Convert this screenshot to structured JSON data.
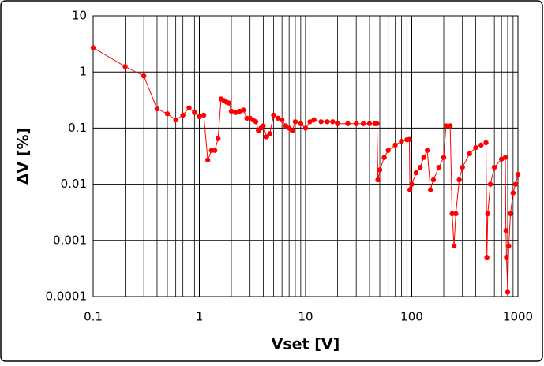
{
  "chart_data": {
    "type": "line",
    "xlabel": "Vset [V]",
    "ylabel": "ΔV [%]",
    "x": [
      0.1,
      0.2,
      0.3,
      0.4,
      0.5,
      0.6,
      0.7,
      0.8,
      0.9,
      1.0,
      1.1,
      1.2,
      1.3,
      1.4,
      1.5,
      1.6,
      1.7,
      1.8,
      1.9,
      2,
      2.2,
      2.4,
      2.6,
      2.8,
      3,
      3.2,
      3.4,
      3.6,
      3.8,
      4,
      4.3,
      4.6,
      5,
      5.5,
      6,
      6.5,
      7,
      7.5,
      8,
      9,
      10,
      11,
      12,
      14,
      16,
      18,
      20,
      25,
      30,
      35,
      40,
      45,
      47,
      48,
      50,
      55,
      60,
      70,
      80,
      90,
      95,
      96,
      100,
      110,
      120,
      130,
      140,
      150,
      160,
      180,
      200,
      210,
      230,
      240,
      250,
      260,
      280,
      300,
      350,
      400,
      450,
      500,
      510,
      520,
      550,
      600,
      700,
      760,
      770,
      780,
      800,
      820,
      850,
      900,
      950,
      1000
    ],
    "values": [
      2.7,
      1.25,
      0.85,
      0.22,
      0.18,
      0.14,
      0.17,
      0.23,
      0.19,
      0.16,
      0.17,
      0.027,
      0.04,
      0.04,
      0.065,
      0.33,
      0.31,
      0.29,
      0.28,
      0.2,
      0.19,
      0.2,
      0.21,
      0.15,
      0.15,
      0.14,
      0.13,
      0.09,
      0.1,
      0.11,
      0.07,
      0.08,
      0.17,
      0.15,
      0.14,
      0.11,
      0.1,
      0.09,
      0.13,
      0.12,
      0.1,
      0.13,
      0.14,
      0.13,
      0.13,
      0.13,
      0.12,
      0.12,
      0.12,
      0.12,
      0.12,
      0.12,
      0.12,
      0.012,
      0.018,
      0.03,
      0.04,
      0.05,
      0.058,
      0.062,
      0.063,
      0.008,
      0.01,
      0.016,
      0.02,
      0.03,
      0.04,
      0.008,
      0.012,
      0.02,
      0.03,
      0.11,
      0.11,
      0.003,
      0.0008,
      0.003,
      0.012,
      0.02,
      0.035,
      0.045,
      0.05,
      0.055,
      0.0005,
      0.003,
      0.01,
      0.02,
      0.028,
      0.03,
      0.0015,
      0.0005,
      0.00012,
      0.0008,
      0.003,
      0.007,
      0.01,
      0.015
    ],
    "color": "#ff0000",
    "xlog": true,
    "ylog": true,
    "grid": true,
    "xlim": [
      0.1,
      1000
    ],
    "ylim": [
      0.0001,
      10
    ],
    "xticks": [
      0.1,
      1,
      10,
      100,
      1000
    ],
    "yticks": [
      0.0001,
      0.001,
      0.01,
      0.1,
      1,
      10
    ],
    "xminor_grid": [
      0.2,
      0.3,
      0.4,
      0.5,
      0.6,
      0.7,
      0.8,
      0.9,
      2,
      3,
      4,
      5,
      6,
      7,
      8,
      9,
      20,
      30,
      40,
      50,
      60,
      70,
      80,
      90,
      200,
      300,
      400,
      500,
      600,
      700,
      800,
      900
    ]
  }
}
